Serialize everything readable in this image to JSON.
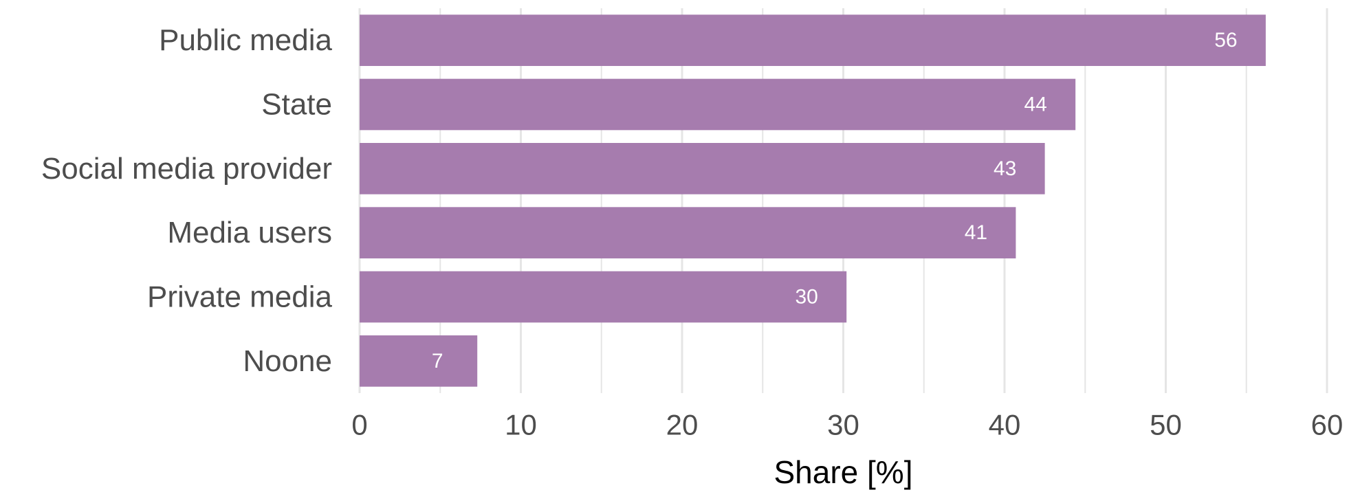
{
  "chart_data": {
    "type": "bar",
    "orientation": "horizontal",
    "categories": [
      "Public media",
      "State",
      "Social media provider",
      "Media users",
      "Private media",
      "Noone"
    ],
    "values": [
      56.2,
      44.4,
      42.5,
      40.7,
      30.2,
      7.3
    ],
    "value_labels": [
      "56",
      "44",
      "43",
      "41",
      "30",
      "7"
    ],
    "xlabel": "Share [%]",
    "ylabel": "",
    "xlim": [
      0,
      60
    ],
    "xticks": [
      "0",
      "10",
      "20",
      "30",
      "40",
      "50",
      "60"
    ],
    "grid": true,
    "colors": {
      "bar": "#a67cae",
      "grid": "#e5e5e5",
      "text": "#4d4d4d"
    }
  }
}
